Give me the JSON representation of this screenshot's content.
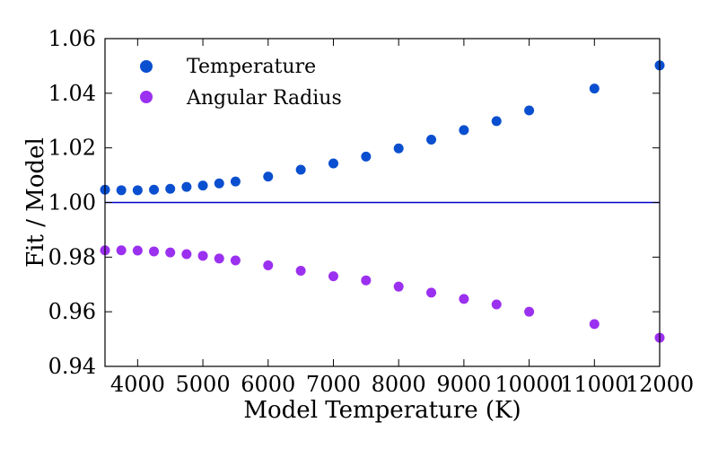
{
  "chart_data": {
    "type": "scatter",
    "title": "",
    "xlabel": "Model Temperature (K)",
    "ylabel": "Fit / Model",
    "xlim": [
      3500,
      12000
    ],
    "ylim": [
      0.94,
      1.06
    ],
    "xticks": [
      4000,
      5000,
      6000,
      7000,
      8000,
      9000,
      10000,
      11000,
      12000
    ],
    "yticks": [
      0.94,
      0.96,
      0.98,
      1.0,
      1.02,
      1.04,
      1.06
    ],
    "ytick_labels": [
      "0.94",
      "0.96",
      "0.98",
      "1.00",
      "1.02",
      "1.04",
      "1.06"
    ],
    "grid": false,
    "legend_position": "top-left",
    "reference_line": {
      "y": 1.0,
      "color": "#0000cc"
    },
    "series": [
      {
        "name": "Temperature",
        "color": "#0a4fcf",
        "x": [
          3500,
          3750,
          4000,
          4250,
          4500,
          4750,
          5000,
          5250,
          5500,
          6000,
          6500,
          7000,
          7500,
          8000,
          8500,
          9000,
          9500,
          10000,
          11000,
          12000
        ],
        "y": [
          1.0047,
          1.0045,
          1.0045,
          1.0047,
          1.005,
          1.0057,
          1.0062,
          1.007,
          1.0077,
          1.0095,
          1.012,
          1.0143,
          1.0168,
          1.0198,
          1.023,
          1.0265,
          1.0298,
          1.0337,
          1.0417,
          1.0502
        ]
      },
      {
        "name": "Angular Radius",
        "color": "#9b30f0",
        "x": [
          3500,
          3750,
          4000,
          4250,
          4500,
          4750,
          5000,
          5250,
          5500,
          6000,
          6500,
          7000,
          7500,
          8000,
          8500,
          9000,
          9500,
          10000,
          11000,
          12000
        ],
        "y": [
          0.9825,
          0.9825,
          0.9824,
          0.9821,
          0.9817,
          0.9811,
          0.9805,
          0.9795,
          0.9788,
          0.977,
          0.975,
          0.973,
          0.9715,
          0.9692,
          0.967,
          0.9647,
          0.9627,
          0.96,
          0.9555,
          0.9505
        ]
      }
    ]
  }
}
